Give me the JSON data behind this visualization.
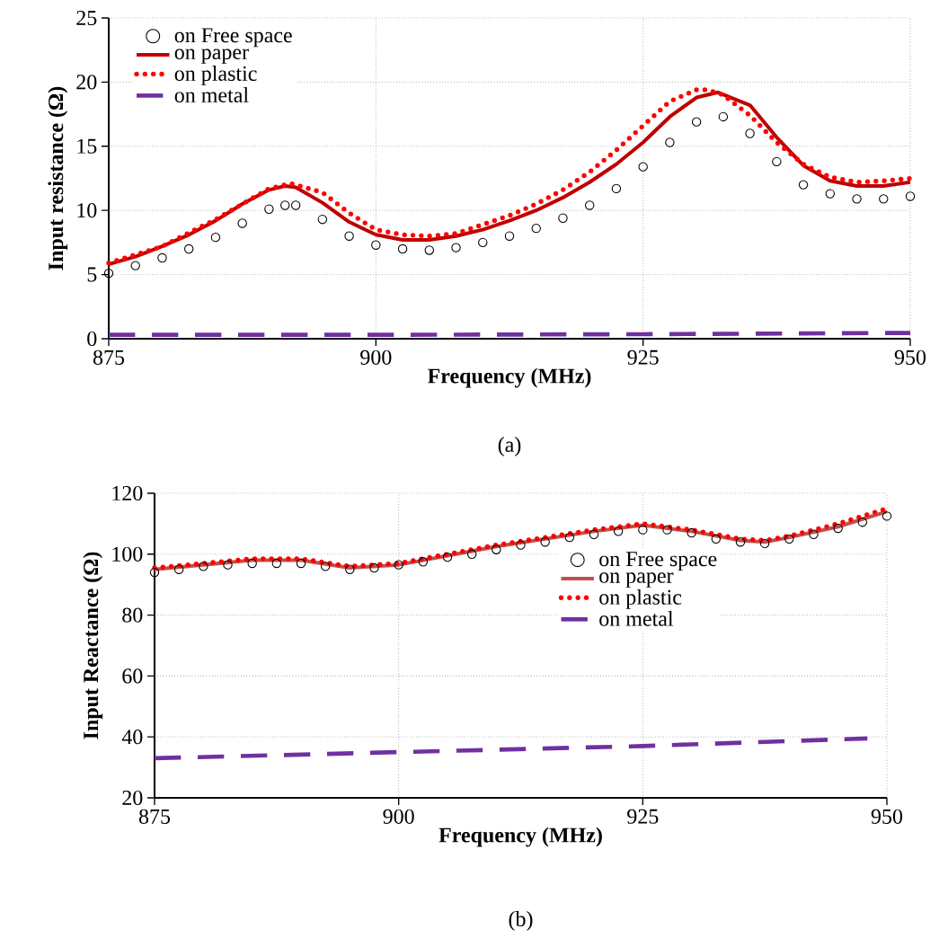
{
  "chart_data": [
    {
      "type": "line",
      "xlabel": "Frequency (MHz)",
      "ylabel": "Input resistance (Ω)",
      "annotations": [
        "(a)"
      ],
      "xlim": [
        875,
        950
      ],
      "ylim": [
        0,
        25
      ],
      "xticks": [
        875,
        900,
        925,
        950
      ],
      "yticks": [
        0,
        5,
        10,
        15,
        20,
        25
      ],
      "grid": true,
      "legend": "top left",
      "series": [
        {
          "name": "on Free space",
          "type": "scatter",
          "marker": "circle",
          "color": "#000000",
          "x": [
            875,
            877.5,
            880,
            882.5,
            885,
            887.5,
            890,
            891.5,
            892.5,
            895,
            897.5,
            900,
            902.5,
            905,
            907.5,
            910,
            912.5,
            915,
            917.5,
            920,
            922.5,
            925,
            927.5,
            930,
            932.5,
            935,
            937.5,
            940,
            942.5,
            945,
            947.5,
            950
          ],
          "values": [
            5.1,
            5.7,
            6.3,
            7.0,
            7.9,
            9.0,
            10.1,
            10.4,
            10.4,
            9.3,
            8.0,
            7.3,
            7.0,
            6.9,
            7.1,
            7.5,
            8.0,
            8.6,
            9.4,
            10.4,
            11.7,
            13.4,
            15.3,
            16.9,
            17.3,
            16.0,
            13.8,
            12.0,
            11.3,
            10.9,
            10.9,
            11.1
          ]
        },
        {
          "name": "on paper",
          "type": "line",
          "line_style": "solid",
          "color": "#c00000",
          "x": [
            875,
            877.5,
            880,
            882.5,
            885,
            887.5,
            890,
            891.5,
            892.5,
            895,
            897.5,
            900,
            902.5,
            905,
            907.5,
            910,
            912.5,
            915,
            917.5,
            920,
            922.5,
            925,
            927.5,
            930,
            932,
            935,
            937.5,
            940,
            942.5,
            945,
            947.5,
            950
          ],
          "values": [
            5.8,
            6.4,
            7.2,
            8.1,
            9.2,
            10.5,
            11.6,
            11.9,
            11.8,
            10.6,
            9.1,
            8.1,
            7.7,
            7.7,
            8.0,
            8.5,
            9.2,
            10.0,
            11.0,
            12.2,
            13.6,
            15.3,
            17.3,
            18.8,
            19.2,
            18.2,
            15.7,
            13.5,
            12.3,
            11.9,
            11.9,
            12.2
          ]
        },
        {
          "name": "on plastic",
          "type": "line",
          "line_style": "dotted",
          "color": "#ff0000",
          "x": [
            875,
            880,
            885,
            890,
            892,
            895,
            897.5,
            900,
            902.5,
            905,
            907.5,
            910,
            912.5,
            915,
            917.5,
            920,
            922.5,
            925,
            927.5,
            930,
            931,
            932.5,
            935,
            937.5,
            940,
            942.5,
            945,
            947.5,
            950
          ],
          "values": [
            5.9,
            7.2,
            9.3,
            11.7,
            12.1,
            11.4,
            9.8,
            8.5,
            8.1,
            8.0,
            8.2,
            8.9,
            9.6,
            10.5,
            11.6,
            13.0,
            14.7,
            16.6,
            18.5,
            19.4,
            19.4,
            19.0,
            17.4,
            15.3,
            13.6,
            12.6,
            12.2,
            12.3,
            12.5
          ]
        },
        {
          "name": "on metal",
          "type": "line",
          "line_style": "dashed",
          "color": "#7030a0",
          "x": [
            875,
            900,
            925,
            950
          ],
          "values": [
            0.3,
            0.3,
            0.35,
            0.45
          ]
        }
      ]
    },
    {
      "type": "line",
      "xlabel": "Frequency (MHz)",
      "ylabel": "Input Reactance (Ω)",
      "annotations": [
        "(b)"
      ],
      "xlim": [
        875,
        950
      ],
      "ylim": [
        20,
        120
      ],
      "xticks": [
        875,
        900,
        925,
        950
      ],
      "yticks": [
        20,
        40,
        60,
        80,
        100,
        120
      ],
      "grid": true,
      "legend": "right",
      "series": [
        {
          "name": "on Free space",
          "type": "scatter",
          "marker": "circle",
          "color": "#000000",
          "x": [
            875,
            877.5,
            880,
            882.5,
            885,
            887.5,
            890,
            892.5,
            895,
            897.5,
            900,
            902.5,
            905,
            907.5,
            910,
            912.5,
            915,
            917.5,
            920,
            922.5,
            925,
            927.5,
            930,
            932.5,
            935,
            937.5,
            940,
            942.5,
            945,
            947.5,
            950
          ],
          "values": [
            94,
            95,
            96,
            96.5,
            97,
            97,
            97,
            96,
            95,
            95.5,
            96.5,
            97.5,
            99,
            100,
            101.5,
            103,
            104,
            105.5,
            106.5,
            107.5,
            108,
            108,
            107,
            105,
            104,
            103.5,
            105,
            106.5,
            108.5,
            110.5,
            112.5
          ]
        },
        {
          "name": "on paper",
          "type": "line",
          "line_style": "solid",
          "color": "#c0504d",
          "x": [
            875,
            880,
            885,
            890,
            895,
            900,
            905,
            910,
            915,
            920,
            925,
            930,
            935,
            937.5,
            940,
            945,
            950
          ],
          "values": [
            95,
            96.5,
            98,
            98,
            95.5,
            96.5,
            99.5,
            102.5,
            105,
            107.5,
            109.5,
            107.5,
            104.5,
            104,
            105.5,
            109,
            114
          ]
        },
        {
          "name": "on plastic",
          "type": "line",
          "line_style": "dotted",
          "color": "#ff0000",
          "x": [
            875,
            880,
            885,
            890,
            895,
            900,
            905,
            910,
            915,
            920,
            925,
            930,
            935,
            937.5,
            940,
            945,
            950
          ],
          "values": [
            95.5,
            97,
            98.5,
            98.5,
            96,
            97,
            100,
            103,
            105.5,
            108,
            110,
            108,
            105,
            104.5,
            106,
            110,
            115
          ]
        },
        {
          "name": "on metal",
          "type": "line",
          "line_style": "dashed",
          "color": "#7030a0",
          "x": [
            875,
            900,
            925,
            948
          ],
          "values": [
            33,
            35,
            37,
            39.5
          ]
        }
      ]
    }
  ]
}
